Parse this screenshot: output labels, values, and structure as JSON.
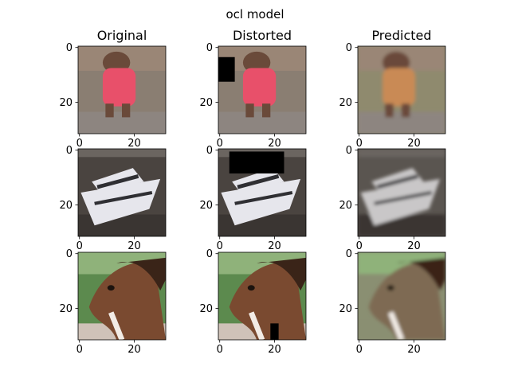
{
  "chart_data": {
    "type": "image-grid",
    "title": "ocl model",
    "columns": [
      "Original",
      "Distorted",
      "Predicted"
    ],
    "image_size": [
      32,
      32
    ],
    "x_ticks": [
      0,
      20
    ],
    "y_ticks": [
      0,
      20
    ],
    "rows": [
      {
        "subject": "dog",
        "palette": {
          "bg": "#8a7e72",
          "bg_top": "#9a8676",
          "floor": "#8d8580",
          "main": "#e8506a",
          "accent": "#6a4a3a",
          "pred_bg": "#8f8a6e",
          "pred_main": "#c98a55"
        },
        "occlusion": {
          "x": 0,
          "y": 4,
          "w": 6,
          "h": 9
        }
      },
      {
        "subject": "boat",
        "palette": {
          "bg": "#4a4440",
          "bg_top": "#6b6560",
          "floor": "#3a3532",
          "main": "#e6e6ec",
          "accent": "#2f2f33",
          "pred_bg": "#5a5550",
          "pred_main": "#c9c7c8"
        },
        "occlusion": {
          "x": 4,
          "y": 1,
          "w": 20,
          "h": 8
        }
      },
      {
        "subject": "horse",
        "palette": {
          "bg": "#5c8a4e",
          "bg_top": "#8fb27a",
          "floor": "#cfc2b8",
          "main": "#7a4a30",
          "accent": "#f2ece6",
          "pred_bg": "#8a8f72",
          "pred_main": "#7e6a52"
        },
        "occlusion": {
          "x": 19,
          "y": 26,
          "w": 3,
          "h": 6
        }
      }
    ]
  }
}
